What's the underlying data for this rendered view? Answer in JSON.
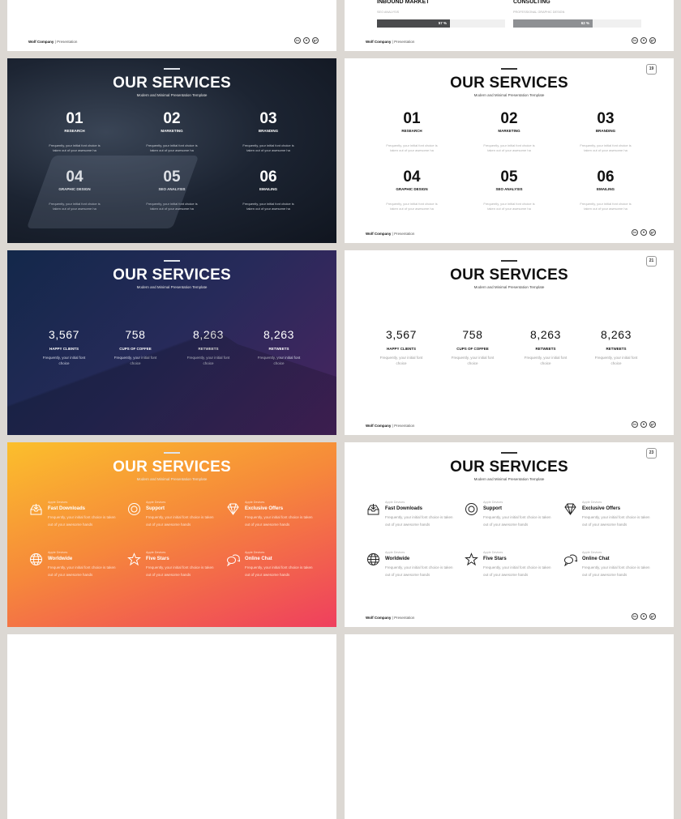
{
  "footer": {
    "company": "Wolf Company",
    "separator": " | ",
    "label": "Presentation",
    "social": [
      "in",
      "♥",
      "g+"
    ]
  },
  "common": {
    "title": "OUR SERVICES",
    "subtitle": "Modern and Minimal Presentation Template"
  },
  "progress": [
    {
      "title": "INBOUND MARKET",
      "subtitle": "SEO ANALYSIS",
      "value": 57,
      "label": "57 %",
      "color": "#4a4b4d"
    },
    {
      "title": "CONSULTING",
      "subtitle": "PROFESSIONAL GRAPHIC DESIGN",
      "value": 62,
      "label": "62 %",
      "color": "#8e9093"
    }
  ],
  "services": [
    {
      "num": "01",
      "label": "RESEARCH",
      "desc": "Frequently, your initial font choice is taken out of your awesome ha"
    },
    {
      "num": "02",
      "label": "MARKETING",
      "desc": "Frequently, your initial font choice is taken out of your awesome ha"
    },
    {
      "num": "03",
      "label": "BRANDING",
      "desc": "Frequently, your initial font choice is taken out of your awesome ha"
    },
    {
      "num": "04",
      "label": "GRAPHIC DESIGN",
      "desc": "Frequently, your initial font choice is taken out of your awesome ha"
    },
    {
      "num": "05",
      "label": "SEO ANALYSIS",
      "desc": "Frequently, your initial font choice is taken out of your awesome ha"
    },
    {
      "num": "06",
      "label": "EMAILING",
      "desc": "Frequently, your initial font choice is taken out of your awesome ha"
    }
  ],
  "stats": [
    {
      "num": "3,567",
      "label": "HAPPY CLIENTS",
      "desc": "Frequently, your initial font choice"
    },
    {
      "num": "758",
      "label": "CUPS OF COFFEE",
      "desc": "Frequently, your initial font choice"
    },
    {
      "num": "8,263",
      "label": "RETWEETS",
      "desc": "Frequently, your initial font choice"
    },
    {
      "num": "8,263",
      "label": "RETWEETS",
      "desc": "Frequently, your initial font choice"
    }
  ],
  "features": [
    {
      "icon": "inbox-download-icon",
      "caption": "Apple Devices",
      "title": "Fast Downloads",
      "desc": "Frequently, your initial font choice is taken out of your awesome hands"
    },
    {
      "icon": "lifebuoy-icon",
      "caption": "Apple Devices",
      "title": "Support",
      "desc": "Frequently, your initial font choice is taken out of your awesome hands"
    },
    {
      "icon": "diamond-icon",
      "caption": "Apple Devices",
      "title": "Exclusive Offers",
      "desc": "Frequently, your initial font choice is taken out of your awesome hands"
    },
    {
      "icon": "globe-icon",
      "caption": "Apple Devices",
      "title": "Worldwide",
      "desc": "Frequently, your initial font choice is taken out of your awesome hands"
    },
    {
      "icon": "star-icon",
      "caption": "Apple Devices",
      "title": "Five Stars",
      "desc": "Frequently, your initial font choice is taken out of your awesome hands"
    },
    {
      "icon": "chat-bubbles-icon",
      "caption": "Apple Devices",
      "title": "Online Chat",
      "desc": "Frequently, your initial font choice is taken out of your awesome hands"
    }
  ],
  "pages": {
    "services": "19",
    "stats": "21",
    "features": "23"
  },
  "colors": {
    "background": "#dcd8d3",
    "gradient_orange": [
      "#fbbf2c",
      "#ef3f5e"
    ],
    "gradient_navy": [
      "#13284a",
      "#4a2460"
    ]
  }
}
